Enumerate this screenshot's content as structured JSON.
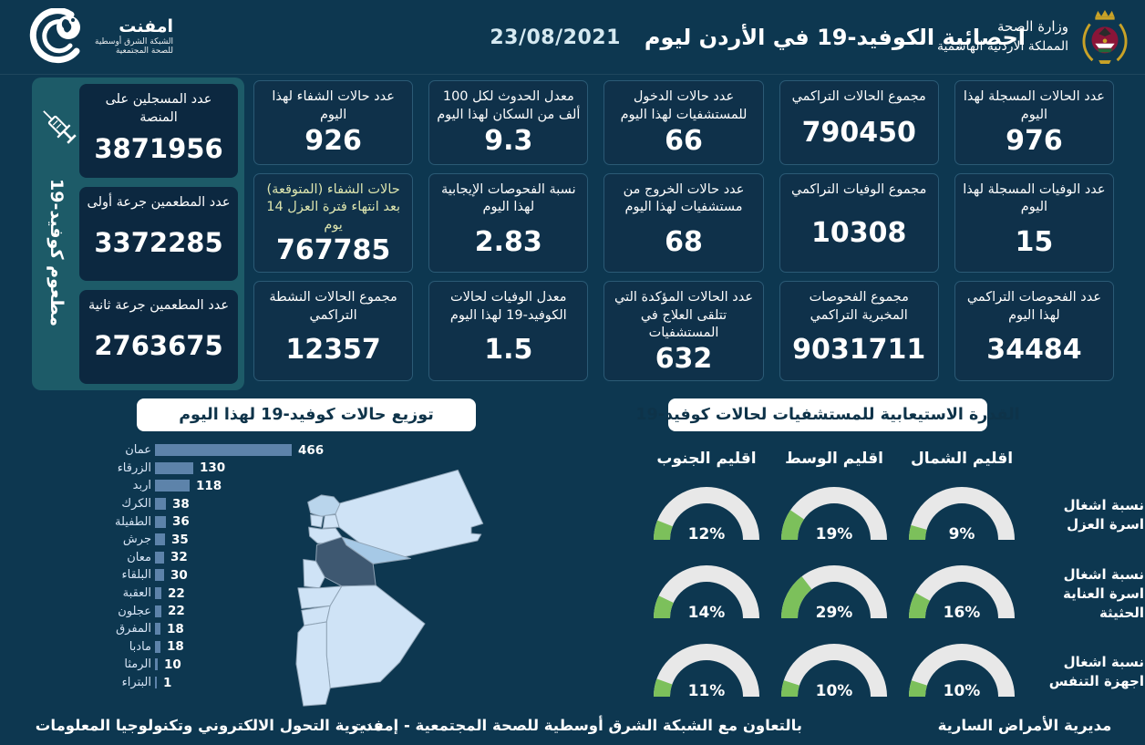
{
  "header": {
    "title": "احصائية الكوفيد-19 في الأردن ليوم",
    "date": "23/08/2021",
    "emphnet": {
      "name": "امفنت",
      "line2": "الشبكة الشرق أوسطية",
      "line3": "للصحة المجتمعية"
    },
    "moh": {
      "line1": "وزارة الصحة",
      "line2": "المملكة الأردنية الهاشمية"
    }
  },
  "vaccine_panel": {
    "vertical_label": "مطعوم كوفيد-19",
    "icon": "syringe-icon",
    "cards": [
      {
        "label": "عدد المسجلين على المنصة",
        "value": "3871956"
      },
      {
        "label": "عدد المطعمين جرعة أولى",
        "value": "3372285"
      },
      {
        "label": "عدد المطعمين جرعة ثانية",
        "value": "2763675"
      }
    ]
  },
  "stat_cards": [
    {
      "label": "عدد الحالات المسجلة لهذا اليوم",
      "value": "976"
    },
    {
      "label": "مجموع الحالات التراكمي",
      "value": "790450"
    },
    {
      "label": "عدد حالات الدخول للمستشفيات لهذا اليوم",
      "value": "66"
    },
    {
      "label": "معدل الحدوث لكل 100 ألف من السكان لهذا اليوم",
      "value": "9.3"
    },
    {
      "label": "عدد حالات الشفاء لهذا اليوم",
      "value": "926"
    },
    {
      "label": "عدد الوفيات المسجلة لهذا اليوم",
      "value": "15"
    },
    {
      "label": "مجموع الوفيات التراكمي",
      "value": "10308"
    },
    {
      "label": "عدد حالات الخروج من مستشفيات لهذا اليوم",
      "value": "68"
    },
    {
      "label": "نسبة الفحوصات الإيجابية لهذا اليوم",
      "value": "2.83"
    },
    {
      "label": "حالات الشفاء (المتوقعة) بعد انتهاء فترة العزل 14 يوم",
      "value": "767785",
      "accent": true
    },
    {
      "label": "عدد الفحوصات التراكمي لهذا اليوم",
      "value": "34484"
    },
    {
      "label": "مجموع الفحوصات المخبرية التراكمي",
      "value": "9031711"
    },
    {
      "label": "عدد الحالات المؤكدة التي تتلقى العلاج في المستشفيات",
      "value": "632"
    },
    {
      "label": "معدل الوفيات لحالات الكوفيد-19 لهذا اليوم",
      "value": "1.5"
    },
    {
      "label": "مجموع الحالات النشطة التراكمي",
      "value": "12357"
    }
  ],
  "chart_data": [
    {
      "type": "bar",
      "title": "توزيع حالات كوفيد-19 لهذا اليوم",
      "orientation": "horizontal",
      "categories": [
        "عمان",
        "الزرقاء",
        "اربد",
        "الكرك",
        "الطفيلة",
        "جرش",
        "معان",
        "البلقاء",
        "العقبة",
        "عجلون",
        "المفرق",
        "مادبا",
        "الرمثا",
        "البتراء"
      ],
      "values": [
        466,
        130,
        118,
        38,
        36,
        35,
        32,
        30,
        22,
        22,
        18,
        18,
        10,
        1
      ],
      "xlim": [
        0,
        466
      ],
      "value_labels": true,
      "grid": false
    },
    {
      "type": "gauge",
      "title": "القدرة الاستيعابية للمستشفيات لحالات كوفيد-19",
      "columns": [
        "اقليم الجنوب",
        "اقليم الوسط",
        "اقليم الشمال"
      ],
      "rows": [
        {
          "label": "نسبة اشغال اسرة العزل",
          "values": [
            12,
            19,
            9
          ]
        },
        {
          "label": "نسبة اشغال اسرة العناية الحثيثة",
          "values": [
            14,
            29,
            16
          ]
        },
        {
          "label": "نسبة اشغال اجهزة التنفس",
          "values": [
            11,
            10,
            10
          ]
        }
      ],
      "unit": "%",
      "range": [
        0,
        100
      ]
    }
  ],
  "map": {
    "description": "jordan-governorates-map",
    "highlight_dark": "amman",
    "highlight_medium": "zarqa"
  },
  "footer": {
    "right": "مديرية الأمراض السارية",
    "center": "بالتعاون مع الشبكة الشرق أوسطية للصحة المجتمعية - إمفنت",
    "left": "مديرية التحول الالكتروني وتكنولوجيا المعلومات"
  },
  "colors": {
    "background": "#0d3750",
    "card_bg": "#0f314a",
    "card_border": "#2b5a75",
    "vaccine_panel": "#1d5b68",
    "vaccine_card_bg": "#0c2840",
    "accent_label": "#dce4ae",
    "bar_fill": "#5d83aa",
    "gauge_track": "#e8e8e8",
    "gauge_fill": "#7cc05b",
    "map_base": "#cfe3f6",
    "map_amman": "#3e5871",
    "map_zarqa": "#a6c9e6",
    "title_box_bg": "#ffffff",
    "title_box_text": "#0e3349"
  }
}
